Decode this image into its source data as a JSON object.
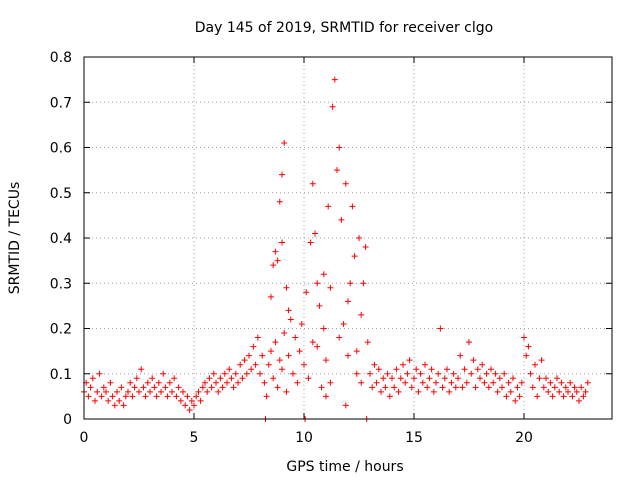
{
  "chart_data": {
    "type": "scatter",
    "title": "Day 145 of 2019, SRMTID for receiver clgo",
    "xlabel": "GPS time / hours",
    "ylabel": "SRMTID / TECUs",
    "xlim": [
      0,
      24
    ],
    "ylim": [
      0,
      0.8
    ],
    "xticks": [
      0,
      5,
      10,
      15,
      20
    ],
    "yticks": [
      0,
      0.1,
      0.2,
      0.3,
      0.4,
      0.5,
      0.6,
      0.7,
      0.8
    ],
    "xtick_labels": [
      "0",
      "5",
      "10",
      "15",
      "20"
    ],
    "ytick_labels": [
      "0",
      "0.1",
      "0.2",
      "0.3",
      "0.4",
      "0.5",
      "0.6",
      "0.7",
      "0.8"
    ],
    "grid": true,
    "marker": "+",
    "color": "#ff0000",
    "series": [
      {
        "name": "SRMTID",
        "points": [
          [
            0.0,
            0.06
          ],
          [
            0.1,
            0.08
          ],
          [
            0.2,
            0.05
          ],
          [
            0.3,
            0.07
          ],
          [
            0.4,
            0.09
          ],
          [
            0.5,
            0.04
          ],
          [
            0.6,
            0.06
          ],
          [
            0.7,
            0.1
          ],
          [
            0.8,
            0.05
          ],
          [
            0.9,
            0.07
          ],
          [
            1.0,
            0.06
          ],
          [
            1.1,
            0.04
          ],
          [
            1.2,
            0.08
          ],
          [
            1.3,
            0.05
          ],
          [
            1.4,
            0.03
          ],
          [
            1.5,
            0.06
          ],
          [
            1.6,
            0.04
          ],
          [
            1.7,
            0.07
          ],
          [
            1.8,
            0.03
          ],
          [
            1.9,
            0.05
          ],
          [
            2.0,
            0.06
          ],
          [
            2.1,
            0.08
          ],
          [
            2.2,
            0.05
          ],
          [
            2.3,
            0.07
          ],
          [
            2.4,
            0.09
          ],
          [
            2.5,
            0.06
          ],
          [
            2.6,
            0.11
          ],
          [
            2.7,
            0.07
          ],
          [
            2.8,
            0.05
          ],
          [
            2.9,
            0.08
          ],
          [
            3.0,
            0.06
          ],
          [
            3.1,
            0.09
          ],
          [
            3.2,
            0.07
          ],
          [
            3.3,
            0.05
          ],
          [
            3.4,
            0.08
          ],
          [
            3.5,
            0.06
          ],
          [
            3.6,
            0.1
          ],
          [
            3.7,
            0.07
          ],
          [
            3.8,
            0.05
          ],
          [
            3.9,
            0.08
          ],
          [
            4.0,
            0.06
          ],
          [
            4.1,
            0.09
          ],
          [
            4.2,
            0.05
          ],
          [
            4.3,
            0.07
          ],
          [
            4.4,
            0.04
          ],
          [
            4.5,
            0.06
          ],
          [
            4.6,
            0.03
          ],
          [
            4.7,
            0.05
          ],
          [
            4.8,
            0.02
          ],
          [
            4.9,
            0.04
          ],
          [
            5.0,
            0.03
          ],
          [
            5.1,
            0.05
          ],
          [
            5.2,
            0.06
          ],
          [
            5.3,
            0.04
          ],
          [
            5.4,
            0.07
          ],
          [
            5.5,
            0.08
          ],
          [
            5.6,
            0.06
          ],
          [
            5.7,
            0.09
          ],
          [
            5.8,
            0.07
          ],
          [
            5.9,
            0.1
          ],
          [
            6.0,
            0.08
          ],
          [
            6.1,
            0.06
          ],
          [
            6.2,
            0.09
          ],
          [
            6.3,
            0.07
          ],
          [
            6.4,
            0.1
          ],
          [
            6.5,
            0.08
          ],
          [
            6.6,
            0.11
          ],
          [
            6.7,
            0.09
          ],
          [
            6.8,
            0.07
          ],
          [
            6.9,
            0.1
          ],
          [
            7.0,
            0.08
          ],
          [
            7.1,
            0.12
          ],
          [
            7.2,
            0.09
          ],
          [
            7.3,
            0.13
          ],
          [
            7.4,
            0.1
          ],
          [
            7.5,
            0.14
          ],
          [
            7.6,
            0.11
          ],
          [
            7.7,
            0.16
          ],
          [
            7.8,
            0.12
          ],
          [
            7.9,
            0.18
          ],
          [
            8.0,
            0.1
          ],
          [
            8.1,
            0.14
          ],
          [
            8.2,
            0.08
          ],
          [
            8.3,
            0.05
          ],
          [
            8.4,
            0.12
          ],
          [
            8.5,
            0.15
          ],
          [
            8.6,
            0.09
          ],
          [
            8.7,
            0.17
          ],
          [
            8.8,
            0.07
          ],
          [
            8.9,
            0.13
          ],
          [
            9.0,
            0.11
          ],
          [
            9.1,
            0.19
          ],
          [
            9.2,
            0.06
          ],
          [
            9.3,
            0.14
          ],
          [
            9.4,
            0.22
          ],
          [
            9.5,
            0.1
          ],
          [
            9.6,
            0.18
          ],
          [
            9.7,
            0.08
          ],
          [
            9.8,
            0.15
          ],
          [
            9.9,
            0.21
          ],
          [
            8.5,
            0.27
          ],
          [
            8.6,
            0.34
          ],
          [
            8.7,
            0.37
          ],
          [
            8.8,
            0.35
          ],
          [
            8.9,
            0.48
          ],
          [
            9.0,
            0.54
          ],
          [
            9.1,
            0.61
          ],
          [
            9.2,
            0.29
          ],
          [
            9.3,
            0.24
          ],
          [
            9.0,
            0.39
          ],
          [
            10.0,
            0.12
          ],
          [
            10.1,
            0.28
          ],
          [
            10.2,
            0.09
          ],
          [
            10.3,
            0.39
          ],
          [
            10.4,
            0.52
          ],
          [
            10.5,
            0.41
          ],
          [
            10.6,
            0.16
          ],
          [
            10.7,
            0.25
          ],
          [
            10.8,
            0.07
          ],
          [
            10.9,
            0.32
          ],
          [
            11.0,
            0.13
          ],
          [
            11.1,
            0.47
          ],
          [
            11.2,
            0.29
          ],
          [
            11.3,
            0.69
          ],
          [
            11.4,
            0.75
          ],
          [
            11.5,
            0.55
          ],
          [
            11.6,
            0.6
          ],
          [
            11.7,
            0.44
          ],
          [
            11.8,
            0.21
          ],
          [
            11.9,
            0.52
          ],
          [
            12.0,
            0.14
          ],
          [
            12.1,
            0.3
          ],
          [
            12.2,
            0.47
          ],
          [
            12.3,
            0.36
          ],
          [
            12.4,
            0.1
          ],
          [
            12.5,
            0.4
          ],
          [
            12.6,
            0.23
          ],
          [
            12.7,
            0.3
          ],
          [
            12.8,
            0.38
          ],
          [
            12.9,
            0.17
          ],
          [
            11.2,
            0.08
          ],
          [
            11.6,
            0.18
          ],
          [
            12.0,
            0.26
          ],
          [
            10.6,
            0.3
          ],
          [
            10.9,
            0.2
          ],
          [
            12.4,
            0.15
          ],
          [
            11.0,
            0.05
          ],
          [
            11.9,
            0.03
          ],
          [
            12.6,
            0.08
          ],
          [
            10.4,
            0.17
          ],
          [
            13.0,
            0.1
          ],
          [
            13.1,
            0.07
          ],
          [
            13.2,
            0.12
          ],
          [
            13.3,
            0.08
          ],
          [
            13.4,
            0.11
          ],
          [
            13.5,
            0.06
          ],
          [
            13.6,
            0.09
          ],
          [
            13.7,
            0.07
          ],
          [
            13.8,
            0.1
          ],
          [
            13.9,
            0.05
          ],
          [
            14.0,
            0.09
          ],
          [
            14.1,
            0.07
          ],
          [
            14.2,
            0.11
          ],
          [
            14.3,
            0.06
          ],
          [
            14.4,
            0.09
          ],
          [
            14.5,
            0.12
          ],
          [
            14.6,
            0.08
          ],
          [
            14.7,
            0.1
          ],
          [
            14.8,
            0.13
          ],
          [
            14.9,
            0.07
          ],
          [
            15.0,
            0.09
          ],
          [
            15.1,
            0.11
          ],
          [
            15.2,
            0.06
          ],
          [
            15.3,
            0.1
          ],
          [
            15.4,
            0.08
          ],
          [
            15.5,
            0.12
          ],
          [
            15.6,
            0.07
          ],
          [
            15.7,
            0.09
          ],
          [
            15.8,
            0.11
          ],
          [
            15.9,
            0.06
          ],
          [
            16.0,
            0.08
          ],
          [
            16.1,
            0.1
          ],
          [
            16.2,
            0.2
          ],
          [
            16.3,
            0.07
          ],
          [
            16.4,
            0.09
          ],
          [
            16.5,
            0.11
          ],
          [
            16.6,
            0.06
          ],
          [
            16.7,
            0.08
          ],
          [
            16.8,
            0.1
          ],
          [
            16.9,
            0.07
          ],
          [
            17.0,
            0.09
          ],
          [
            17.1,
            0.14
          ],
          [
            17.2,
            0.07
          ],
          [
            17.3,
            0.11
          ],
          [
            17.4,
            0.08
          ],
          [
            17.5,
            0.17
          ],
          [
            17.6,
            0.1
          ],
          [
            17.7,
            0.13
          ],
          [
            17.8,
            0.07
          ],
          [
            17.9,
            0.11
          ],
          [
            18.0,
            0.09
          ],
          [
            18.1,
            0.12
          ],
          [
            18.2,
            0.08
          ],
          [
            18.3,
            0.1
          ],
          [
            18.4,
            0.07
          ],
          [
            18.5,
            0.11
          ],
          [
            18.6,
            0.08
          ],
          [
            18.7,
            0.1
          ],
          [
            18.8,
            0.06
          ],
          [
            18.9,
            0.09
          ],
          [
            19.0,
            0.07
          ],
          [
            19.1,
            0.1
          ],
          [
            19.2,
            0.05
          ],
          [
            19.3,
            0.08
          ],
          [
            19.4,
            0.06
          ],
          [
            19.5,
            0.09
          ],
          [
            19.6,
            0.04
          ],
          [
            19.7,
            0.07
          ],
          [
            19.8,
            0.05
          ],
          [
            19.9,
            0.08
          ],
          [
            20.0,
            0.18
          ],
          [
            20.1,
            0.14
          ],
          [
            20.2,
            0.16
          ],
          [
            20.3,
            0.1
          ],
          [
            20.4,
            0.07
          ],
          [
            20.5,
            0.12
          ],
          [
            20.6,
            0.05
          ],
          [
            20.7,
            0.09
          ],
          [
            20.8,
            0.13
          ],
          [
            20.9,
            0.07
          ],
          [
            21.0,
            0.09
          ],
          [
            21.1,
            0.06
          ],
          [
            21.2,
            0.08
          ],
          [
            21.3,
            0.05
          ],
          [
            21.4,
            0.07
          ],
          [
            21.5,
            0.09
          ],
          [
            21.6,
            0.06
          ],
          [
            21.7,
            0.08
          ],
          [
            21.8,
            0.05
          ],
          [
            21.9,
            0.07
          ],
          [
            22.0,
            0.06
          ],
          [
            22.1,
            0.08
          ],
          [
            22.2,
            0.05
          ],
          [
            22.3,
            0.07
          ],
          [
            22.4,
            0.06
          ],
          [
            22.5,
            0.04
          ],
          [
            22.6,
            0.07
          ],
          [
            22.7,
            0.05
          ],
          [
            22.8,
            0.06
          ],
          [
            22.9,
            0.08
          ],
          [
            8.25,
            0.0
          ],
          [
            10.05,
            0.0
          ],
          [
            12.85,
            0.0
          ]
        ]
      }
    ]
  }
}
